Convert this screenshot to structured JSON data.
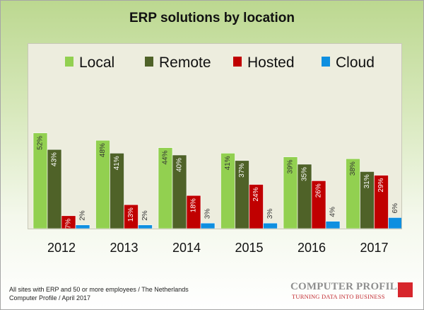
{
  "chart_data": {
    "type": "bar",
    "title": "ERP solutions by location",
    "categories": [
      "2012",
      "2013",
      "2014",
      "2015",
      "2016",
      "2017"
    ],
    "series": [
      {
        "name": "Local",
        "color": "#92d050",
        "values": [
          52,
          48,
          44,
          41,
          39,
          38
        ]
      },
      {
        "name": "Remote",
        "color": "#4f6228",
        "values": [
          43,
          41,
          40,
          37,
          35,
          31
        ]
      },
      {
        "name": "Hosted",
        "color": "#c00000",
        "values": [
          7,
          13,
          18,
          24,
          26,
          29
        ]
      },
      {
        "name": "Cloud",
        "color": "#0e8fe0",
        "values": [
          2,
          2,
          3,
          3,
          4,
          6
        ]
      }
    ],
    "value_suffix": "%",
    "ylim": [
      0,
      70
    ],
    "legend_position": "top",
    "grid": false
  },
  "footnote": {
    "line1": "All sites with ERP and 50 or more employees  / The Netherlands",
    "line2": "Computer Profile / April 2017"
  },
  "logo": {
    "name": "COMPUTER PROFILE",
    "tagline": "TURNING DATA INTO BUSINESS"
  }
}
